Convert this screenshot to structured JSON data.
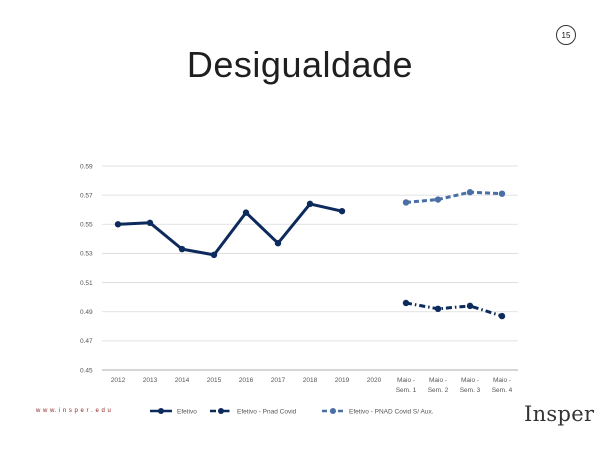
{
  "slide": {
    "title": "Desigualdade",
    "page_number": "15",
    "website": "w w w. i n s p e r . e d u",
    "logo_text": "Insper"
  },
  "chart_data": {
    "type": "line",
    "title": "",
    "xlabel": "",
    "ylabel": "",
    "categories": [
      "2012",
      "2013",
      "2014",
      "2015",
      "2016",
      "2017",
      "2018",
      "2019",
      "2020",
      "Maio - Sem. 1",
      "Maio - Sem. 2",
      "Maio - Sem. 3",
      "Maio - Sem. 4"
    ],
    "ylim": [
      0.45,
      0.59
    ],
    "yticks": [
      "0.59",
      "0.57",
      "0.55",
      "0.53",
      "0.51",
      "0.49",
      "0.47",
      "0.45"
    ],
    "grid": true,
    "series": [
      {
        "name": "Efetivo",
        "color": "#0d2a5c",
        "dash": "solid",
        "values": [
          0.55,
          0.551,
          0.533,
          0.529,
          0.558,
          0.537,
          0.564,
          0.559,
          null,
          null,
          null,
          null,
          null
        ]
      },
      {
        "name": "Efetivo - Pnad Covid",
        "color": "#0d2a5c",
        "dash": "dashdot",
        "values": [
          null,
          null,
          null,
          null,
          null,
          null,
          null,
          null,
          null,
          0.496,
          0.492,
          0.494,
          0.487
        ]
      },
      {
        "name": "Efetivo - PNAD Covid S/ Aux.",
        "color": "#4a6fa5",
        "dash": "dashed",
        "values": [
          null,
          null,
          null,
          null,
          null,
          null,
          null,
          null,
          null,
          0.565,
          0.567,
          0.572,
          0.571
        ]
      }
    ]
  }
}
